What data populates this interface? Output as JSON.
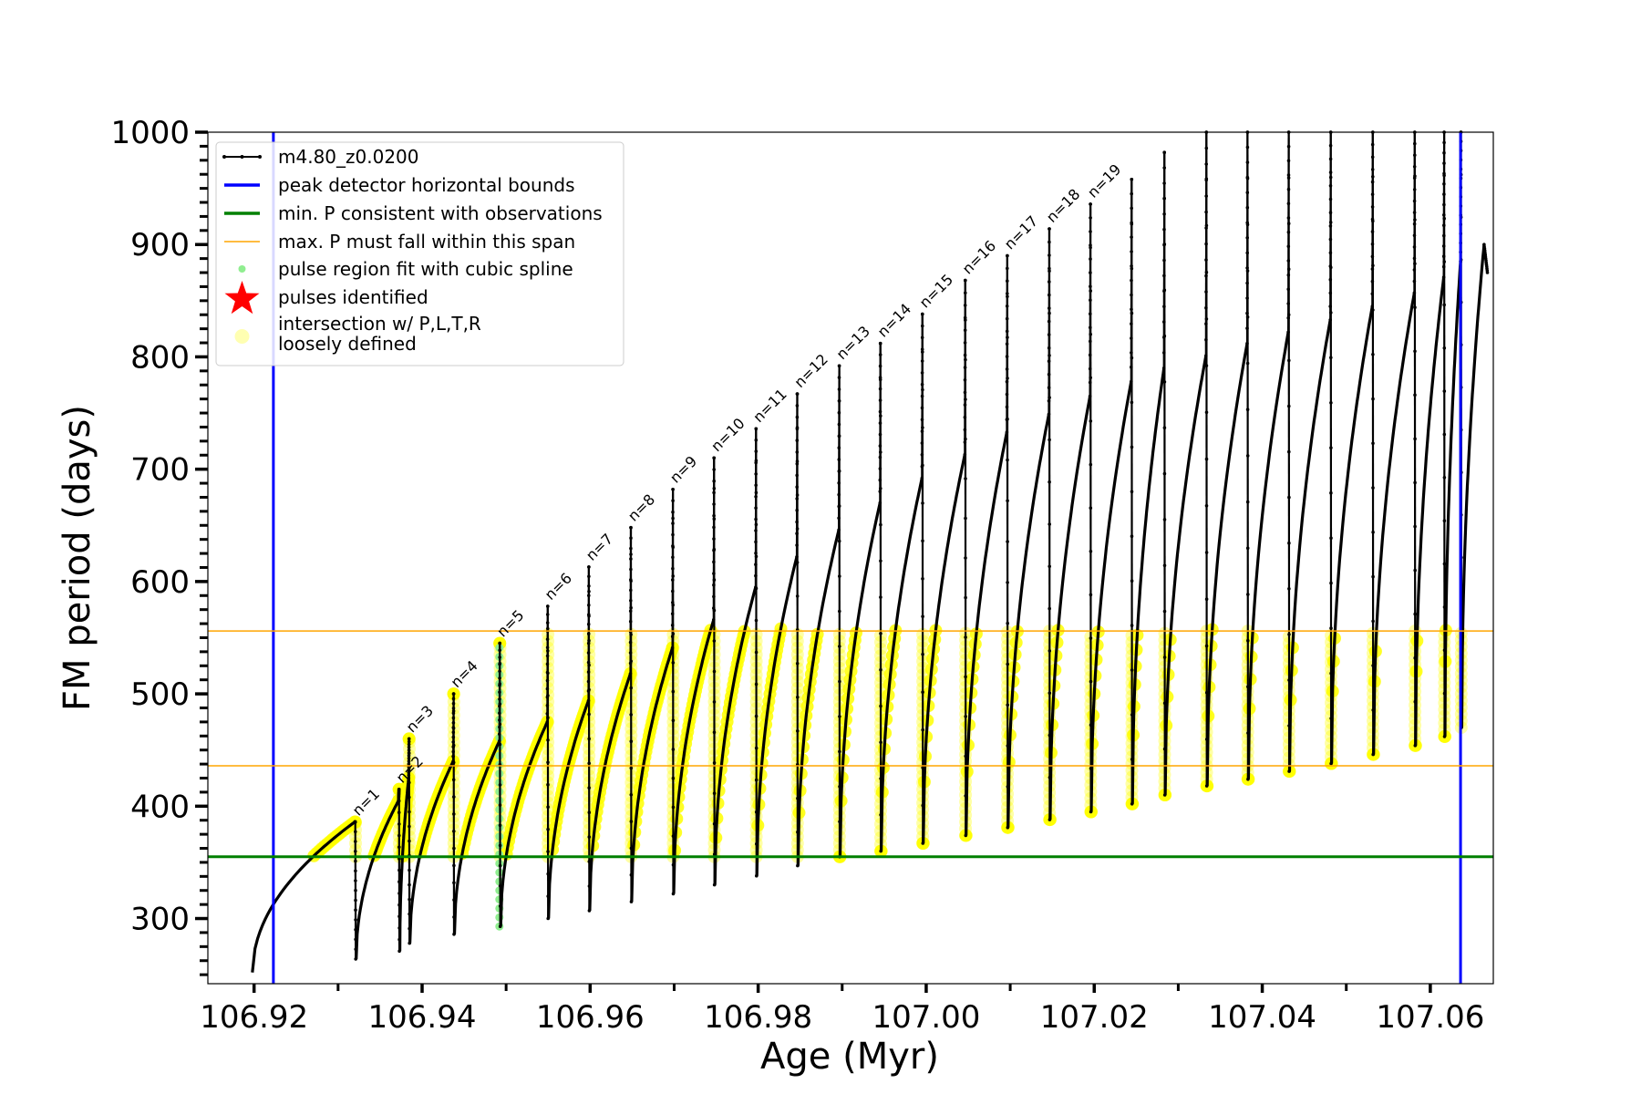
{
  "chart_data": {
    "type": "line",
    "title": "",
    "xlabel": "Age (Myr)",
    "ylabel": "FM period (days)",
    "xlim": [
      106.9145,
      107.0675
    ],
    "ylim": [
      242,
      1000
    ],
    "xticks": [
      106.92,
      106.94,
      106.96,
      106.98,
      107.0,
      107.02,
      107.04,
      107.06
    ],
    "xtick_labels": [
      "106.92",
      "106.94",
      "106.96",
      "106.98",
      "107.00",
      "107.02",
      "107.04",
      "107.06"
    ],
    "yticks": [
      300,
      400,
      500,
      600,
      700,
      800,
      900,
      1000
    ],
    "ytick_labels": [
      "300",
      "400",
      "500",
      "600",
      "700",
      "800",
      "900",
      "1000"
    ],
    "grid": false,
    "legend_position": "top-left",
    "colors": {
      "track": "#000000",
      "bounds": "#0000ff",
      "min_p": "#008000",
      "max_p": "#ffa500",
      "spline": "#90ee90",
      "pulses": "#ff0000",
      "loose": "#ffff00"
    },
    "legend": [
      {
        "label": "m4.80_z0.0200",
        "kind": "track"
      },
      {
        "label": "peak detector horizontal bounds",
        "kind": "bounds"
      },
      {
        "label": "min. P consistent with observations",
        "kind": "min_p"
      },
      {
        "label": "max. P must fall within this span",
        "kind": "max_p"
      },
      {
        "label": "pulse region fit with cubic spline",
        "kind": "spline"
      },
      {
        "label": "pulses identified",
        "kind": "pulses"
      },
      {
        "label": "intersection w/ P,L,T,R",
        "label2": "loosely defined",
        "kind": "loose"
      }
    ],
    "vlines": [
      106.9223,
      107.0636
    ],
    "hline_min_p": 355,
    "hlines_max_p": [
      436,
      556
    ],
    "series": [
      {
        "name": "m4.80_z0.0200",
        "pulses": [
          {
            "n": "n=1",
            "age": 106.932,
            "pre_max": 386,
            "spike": 386,
            "post_min": 264
          },
          {
            "n": "n=2",
            "age": 106.9372,
            "pre_max": 405,
            "spike": 415,
            "post_min": 271
          },
          {
            "n": "n=3",
            "age": 106.9384,
            "pre_max": 425,
            "spike": 460,
            "post_min": 278
          },
          {
            "n": "n=4",
            "age": 106.9437,
            "pre_max": 440,
            "spike": 500,
            "post_min": 286
          },
          {
            "n": "n=5",
            "age": 106.9492,
            "pre_max": 458,
            "spike": 545,
            "post_min": 293
          },
          {
            "n": "n=6",
            "age": 106.9549,
            "pre_max": 475,
            "spike": 578,
            "post_min": 300
          },
          {
            "n": "n=7",
            "age": 106.9598,
            "pre_max": 494,
            "spike": 613,
            "post_min": 307
          },
          {
            "n": "n=8",
            "age": 106.9648,
            "pre_max": 518,
            "spike": 648,
            "post_min": 315
          },
          {
            "n": "n=9",
            "age": 106.9698,
            "pre_max": 541,
            "spike": 682,
            "post_min": 322
          },
          {
            "n": "n=10",
            "age": 106.9747,
            "pre_max": 566,
            "spike": 710,
            "post_min": 330
          },
          {
            "n": "n=11",
            "age": 106.9797,
            "pre_max": 595,
            "spike": 736,
            "post_min": 338
          },
          {
            "n": "n=12",
            "age": 106.9846,
            "pre_max": 622,
            "spike": 767,
            "post_min": 347
          },
          {
            "n": "n=13",
            "age": 106.9896,
            "pre_max": 646,
            "spike": 792,
            "post_min": 355
          },
          {
            "n": "n=14",
            "age": 106.9945,
            "pre_max": 670,
            "spike": 812,
            "post_min": 360
          },
          {
            "n": "n=15",
            "age": 106.9995,
            "pre_max": 692,
            "spike": 838,
            "post_min": 367
          },
          {
            "n": "n=16",
            "age": 107.0046,
            "pre_max": 713,
            "spike": 868,
            "post_min": 374
          },
          {
            "n": "n=17",
            "age": 107.0096,
            "pre_max": 733,
            "spike": 890,
            "post_min": 381
          },
          {
            "n": "n=18",
            "age": 107.0146,
            "pre_max": 749,
            "spike": 914,
            "post_min": 388
          },
          {
            "n": "n=19",
            "age": 107.0195,
            "pre_max": 765,
            "spike": 936,
            "post_min": 395
          },
          {
            "n": "",
            "age": 107.0244,
            "pre_max": 778,
            "spike": 958,
            "post_min": 402
          },
          {
            "n": "",
            "age": 107.0283,
            "pre_max": 790,
            "spike": 982,
            "post_min": 410
          },
          {
            "n": "",
            "age": 107.0333,
            "pre_max": 801,
            "spike": 1000,
            "post_min": 418
          },
          {
            "n": "",
            "age": 107.0382,
            "pre_max": 812,
            "spike": 1000,
            "post_min": 424
          },
          {
            "n": "",
            "age": 107.0431,
            "pre_max": 822,
            "spike": 1000,
            "post_min": 431
          },
          {
            "n": "",
            "age": 107.0481,
            "pre_max": 833,
            "spike": 1000,
            "post_min": 438
          },
          {
            "n": "",
            "age": 107.0531,
            "pre_max": 845,
            "spike": 1000,
            "post_min": 446
          },
          {
            "n": "",
            "age": 107.0581,
            "pre_max": 857,
            "spike": 1000,
            "post_min": 454
          },
          {
            "n": "",
            "age": 107.0616,
            "pre_max": 871,
            "spike": 1000,
            "post_min": 462
          },
          {
            "n": "",
            "age": 107.0636,
            "pre_max": 885,
            "spike": 1000,
            "post_min": 470
          }
        ],
        "start": {
          "age": 106.9198,
          "period": 252
        },
        "end": {
          "age": 107.0668,
          "period": 900
        }
      }
    ]
  }
}
